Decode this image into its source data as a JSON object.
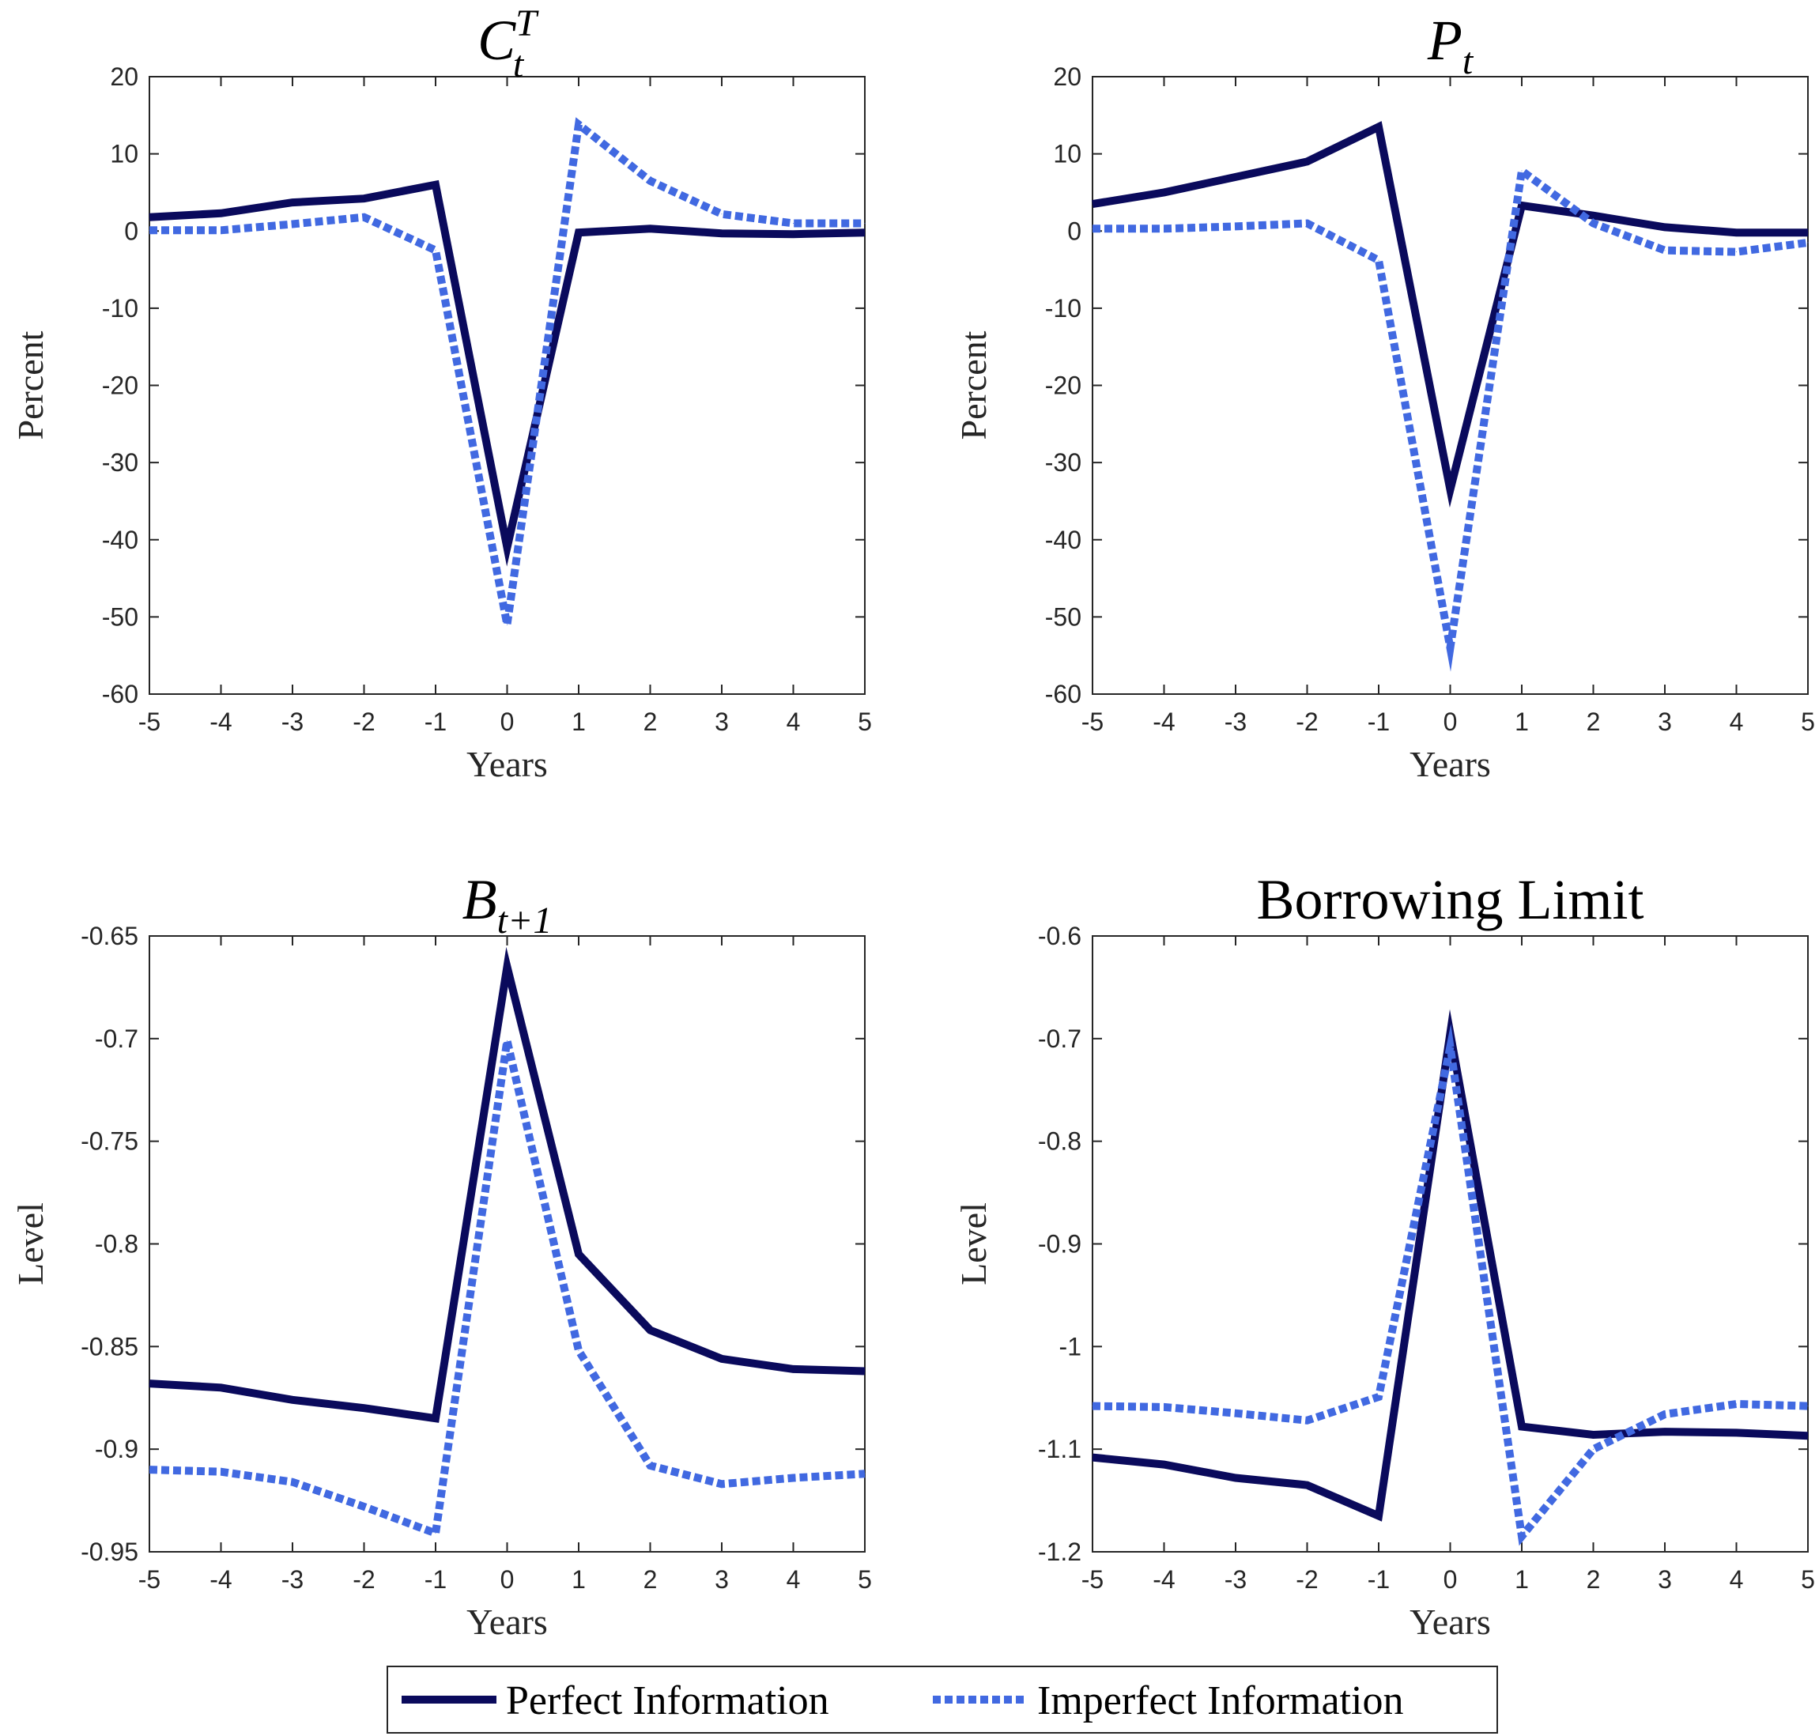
{
  "colors": {
    "perfect": "#0a0a5c",
    "imperfect": "#4169e1",
    "axis": "#262626"
  },
  "legend": {
    "perfect_label": "Perfect Information",
    "imperfect_label": "Imperfect Information"
  },
  "chart_data": [
    {
      "type": "line",
      "title_main": "C",
      "title_sub": "t",
      "title_sup": "T",
      "xlabel": "Years",
      "ylabel": "Percent",
      "xlim": [
        -5,
        5
      ],
      "ylim": [
        -60,
        20
      ],
      "xticks": [
        "-5",
        "-4",
        "-3",
        "-2",
        "-1",
        "0",
        "1",
        "2",
        "3",
        "4",
        "5"
      ],
      "yticks": [
        "20",
        "10",
        "0",
        "-10",
        "-20",
        "-30",
        "-40",
        "-50",
        "-60"
      ],
      "x": [
        -5,
        -4,
        -3,
        -2,
        -1,
        0,
        1,
        2,
        3,
        4,
        5
      ],
      "series": [
        {
          "name": "Perfect Information",
          "values": [
            1.8,
            2.3,
            3.7,
            4.2,
            6.0,
            -41.0,
            -0.2,
            0.3,
            -0.3,
            -0.4,
            -0.2
          ]
        },
        {
          "name": "Imperfect Information",
          "values": [
            0.1,
            0.1,
            0.9,
            1.8,
            -2.5,
            -51.0,
            13.8,
            6.5,
            2.2,
            1.0,
            1.0
          ]
        }
      ]
    },
    {
      "type": "line",
      "title_main": "P",
      "title_sub": "t",
      "title_sup": "",
      "xlabel": "Years",
      "ylabel": "Percent",
      "xlim": [
        -5,
        5
      ],
      "ylim": [
        -60,
        20
      ],
      "xticks": [
        "-5",
        "-4",
        "-3",
        "-2",
        "-1",
        "0",
        "1",
        "2",
        "3",
        "4",
        "5"
      ],
      "yticks": [
        "20",
        "10",
        "0",
        "-10",
        "-20",
        "-30",
        "-40",
        "-50",
        "-60"
      ],
      "x": [
        -5,
        -4,
        -3,
        -2,
        -1,
        0,
        1,
        2,
        3,
        4,
        5
      ],
      "series": [
        {
          "name": "Perfect Information",
          "values": [
            3.5,
            5.0,
            7.0,
            9.0,
            13.5,
            -33.5,
            3.3,
            2.0,
            0.5,
            -0.2,
            -0.2
          ]
        },
        {
          "name": "Imperfect Information",
          "values": [
            0.3,
            0.3,
            0.6,
            1.0,
            -3.8,
            -54.0,
            7.8,
            1.0,
            -2.5,
            -2.7,
            -1.5
          ]
        }
      ]
    },
    {
      "type": "line",
      "title_main": "B",
      "title_sub": "t+1",
      "title_sup": "",
      "xlabel": "Years",
      "ylabel": "Level",
      "xlim": [
        -5,
        5
      ],
      "ylim": [
        -0.95,
        -0.65
      ],
      "xticks": [
        "-5",
        "-4",
        "-3",
        "-2",
        "-1",
        "0",
        "1",
        "2",
        "3",
        "4",
        "5"
      ],
      "yticks": [
        "-0.65",
        "-0.7",
        "-0.75",
        "-0.8",
        "-0.85",
        "-0.9",
        "-0.95"
      ],
      "x": [
        -5,
        -4,
        -3,
        -2,
        -1,
        0,
        1,
        2,
        3,
        4,
        5
      ],
      "series": [
        {
          "name": "Perfect Information",
          "values": [
            -0.868,
            -0.87,
            -0.876,
            -0.88,
            -0.885,
            -0.665,
            -0.805,
            -0.842,
            -0.856,
            -0.861,
            -0.862
          ]
        },
        {
          "name": "Imperfect Information",
          "values": [
            -0.91,
            -0.911,
            -0.916,
            -0.928,
            -0.941,
            -0.701,
            -0.852,
            -0.908,
            -0.917,
            -0.914,
            -0.912
          ]
        }
      ]
    },
    {
      "type": "line",
      "title_main": "Borrowing Limit",
      "title_sub": "",
      "title_sup": "",
      "xlabel": "Years",
      "ylabel": "Level",
      "xlim": [
        -5,
        5
      ],
      "ylim": [
        -1.2,
        -0.6
      ],
      "xticks": [
        "-5",
        "-4",
        "-3",
        "-2",
        "-1",
        "0",
        "1",
        "2",
        "3",
        "4",
        "5"
      ],
      "yticks": [
        "-0.6",
        "-0.7",
        "-0.8",
        "-0.9",
        "-1",
        "-1.1",
        "-1.2"
      ],
      "x": [
        -5,
        -4,
        -3,
        -2,
        -1,
        0,
        1,
        2,
        3,
        4,
        5
      ],
      "series": [
        {
          "name": "Perfect Information",
          "values": [
            -1.108,
            -1.115,
            -1.128,
            -1.135,
            -1.165,
            -0.695,
            -1.078,
            -1.086,
            -1.083,
            -1.084,
            -1.087
          ]
        },
        {
          "name": "Imperfect Information",
          "values": [
            -1.058,
            -1.059,
            -1.065,
            -1.072,
            -1.049,
            -0.708,
            -1.185,
            -1.1,
            -1.066,
            -1.056,
            -1.058
          ]
        }
      ]
    }
  ]
}
